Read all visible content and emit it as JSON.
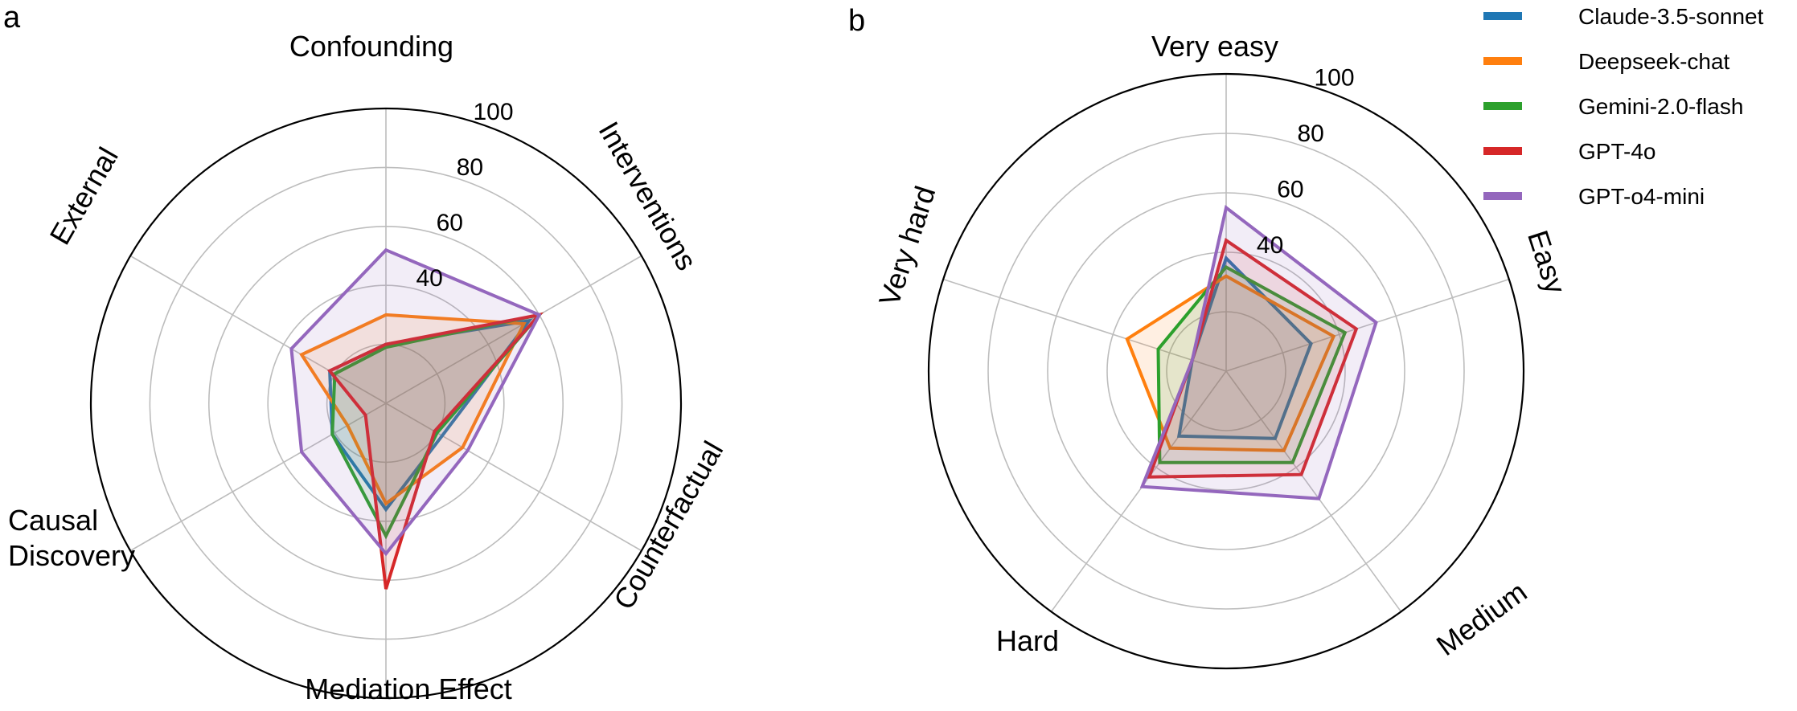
{
  "chart_data": [
    {
      "type": "radar",
      "panel_label": "a",
      "axes": [
        "Confounding",
        "Interventions",
        "Counterfactual",
        "Mediation Effect",
        "Causal Discovery",
        "External"
      ],
      "axis_display": {
        "Causal Discovery": [
          "Causal",
          "Discovery"
        ]
      },
      "rlim": [
        0,
        100
      ],
      "rticks": [
        40,
        60,
        80,
        100
      ],
      "grid": true,
      "series": [
        {
          "name": "Claude-3.5-sonnet",
          "values": [
            20,
            56,
            22,
            36,
            21,
            22
          ]
        },
        {
          "name": "Deepseek-chat",
          "values": [
            30,
            54,
            30,
            34,
            15,
            33
          ]
        },
        {
          "name": "Gemini-2.0-flash",
          "values": [
            19,
            60,
            20,
            45,
            21,
            20
          ]
        },
        {
          "name": "GPT-4o",
          "values": [
            20,
            60,
            19,
            63,
            8,
            22
          ]
        },
        {
          "name": "GPT-o4-mini",
          "values": [
            52,
            60,
            32,
            51,
            33,
            37
          ]
        }
      ]
    },
    {
      "type": "radar",
      "panel_label": "b",
      "axes": [
        "Very easy",
        "Easy",
        "Medium",
        "Hard",
        "Very hard"
      ],
      "rlim": [
        0,
        100
      ],
      "rticks": [
        40,
        60,
        80,
        100
      ],
      "grid": true,
      "series": [
        {
          "name": "Claude-3.5-sonnet",
          "values": [
            38,
            30,
            28,
            27,
            12
          ]
        },
        {
          "name": "Deepseek-chat",
          "values": [
            32,
            38,
            33,
            32,
            35
          ]
        },
        {
          "name": "Gemini-2.0-flash",
          "values": [
            35,
            42,
            38,
            38,
            24
          ]
        },
        {
          "name": "GPT-4o",
          "values": [
            44,
            46,
            43,
            44,
            12
          ]
        },
        {
          "name": "GPT-o4-mini",
          "values": [
            55,
            53,
            53,
            48,
            12
          ]
        }
      ],
      "legend": {
        "placement": "top-right",
        "entries": [
          "Claude-3.5-sonnet",
          "Deepseek-chat",
          "Gemini-2.0-flash",
          "GPT-4o",
          "GPT-o4-mini"
        ]
      }
    }
  ],
  "colors": {
    "Claude-3.5-sonnet": "#1f77b4",
    "Deepseek-chat": "#ff7f0e",
    "Gemini-2.0-flash": "#2ca02c",
    "GPT-4o": "#d62728",
    "GPT-o4-mini": "#9467bd"
  }
}
